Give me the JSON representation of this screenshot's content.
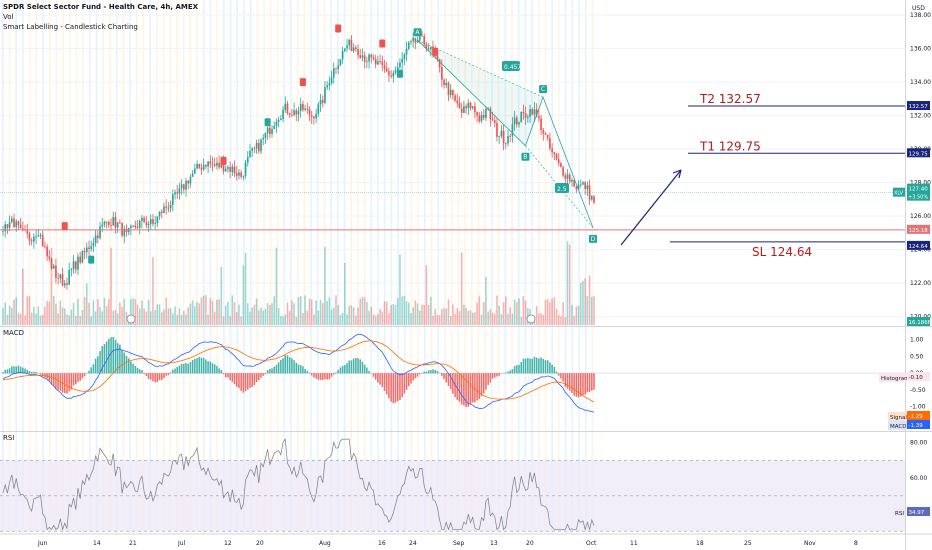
{
  "header": {
    "title": "SPDR Select Sector Fund - Health Care, 4h, AMEX",
    "line2": "Vol",
    "line3": "Smart Labelling - Candlestick Charting"
  },
  "currency": "USD",
  "panes": {
    "macd": "MACD",
    "rsi": "RSI"
  },
  "colors": {
    "up": "#26a69a",
    "down": "#ef5350",
    "macd": "#2962ff",
    "signal": "#ff6d00",
    "rsi": "#7e57c2",
    "target": "#1a237e",
    "stop": "#b71c1c"
  },
  "chart_data": {
    "type": "candlestick",
    "title": "SPDR Select Sector Fund - Health Care, 4h, AMEX",
    "x_ticks": [
      "Jun",
      "14",
      "21",
      "Jul",
      "12",
      "20",
      "Aug",
      "16",
      "24",
      "Sep",
      "13",
      "20",
      "Oct",
      "11",
      "18",
      "25",
      "Nov",
      "8"
    ],
    "y_ticks": [
      "138.00",
      "136.00",
      "134.00",
      "132.00",
      "130.00",
      "128.00",
      "126.00",
      "124.00",
      "122.00",
      "120.00"
    ],
    "ylim": [
      119.5,
      138.9
    ],
    "price_path": [
      125.3,
      125.8,
      125.0,
      124.7,
      125.2,
      123.6,
      122.5,
      122.0,
      123.0,
      123.6,
      124.4,
      125.2,
      125.8,
      125.5,
      124.8,
      125.4,
      125.7,
      125.5,
      126.3,
      126.8,
      127.4,
      128.2,
      128.8,
      129.2,
      129.0,
      129.0,
      128.8,
      128.4,
      129.6,
      130.2,
      131.0,
      131.9,
      132.4,
      132.2,
      132.4,
      132.0,
      132.6,
      134.2,
      135.3,
      136.2,
      136.1,
      135.5,
      135.2,
      134.8,
      134.4,
      135.0,
      136.1,
      136.5,
      136.3,
      135.4,
      134.0,
      133.0,
      132.2,
      132.6,
      131.9,
      132.2,
      131.0,
      130.6,
      131.6,
      132.0,
      132.4,
      131.4,
      130.0,
      129.0,
      128.4,
      127.8,
      127.8,
      126.8
    ],
    "labels": {
      "last_price": "127.40",
      "last_change": "+3.50%",
      "ticker": "XLV",
      "target2_axis": "132.57",
      "target1_axis": "129.75",
      "entry_axis": "125.18",
      "stop_axis": "124.64",
      "vol_axis": "16.186M"
    },
    "levels": {
      "target2": {
        "value": 132.57,
        "text": "T2 132.57"
      },
      "target1": {
        "value": 129.75,
        "text": "T1 129.75"
      },
      "entry": {
        "value": 125.18
      },
      "stop": {
        "value": 124.64,
        "text": "SL 124.64"
      }
    },
    "pattern": {
      "points": [
        "A",
        "C",
        "B",
        "D"
      ],
      "ratios": [
        "0.457",
        "2.5"
      ]
    },
    "macd": {
      "y_ticks": [
        "1.00",
        "0.50",
        "0.00",
        "-0.50",
        "-1.00"
      ],
      "ylim": [
        -1.7,
        1.35
      ],
      "histogram_label": "Histogram",
      "histogram_value": "-0.10",
      "signal_label": "Signal",
      "signal_value": "-1.29",
      "macd_label": "MACD",
      "macd_value": "-1.39"
    },
    "rsi": {
      "y_ticks": [
        "80.00",
        "60.00",
        "40.00"
      ],
      "ylim": [
        29,
        86
      ],
      "band": [
        30,
        70
      ],
      "label": "RSI",
      "value": "34.97"
    }
  }
}
